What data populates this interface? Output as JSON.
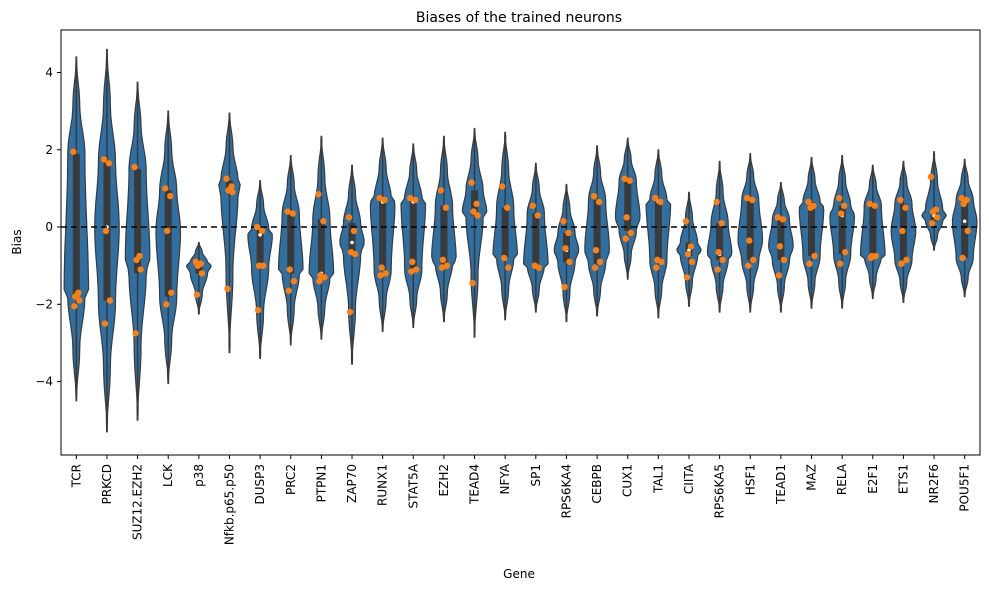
{
  "chart_data": {
    "type": "violin",
    "title": "Biases of the trained neurons",
    "xlabel": "Gene",
    "ylabel": "Bias",
    "ylim": [
      -5.9,
      5.1
    ],
    "yticks": [
      -4,
      -2,
      0,
      2,
      4
    ],
    "reference_line": 0,
    "colors": {
      "violin": "#2f6fa1",
      "points": "#ff7f0e",
      "line": "#000000"
    },
    "categories": [
      "TCR",
      "PRKCD",
      "SUZ12.EZH2",
      "LCK",
      "p38",
      "Nfkb.p65.p50",
      "DUSP3",
      "PRC2",
      "PTPN1",
      "ZAP70",
      "RUNX1",
      "STAT5A",
      "EZH2",
      "TEAD4",
      "NFYA",
      "SP1",
      "RPS6KA4",
      "CEBPB",
      "CUX1",
      "TAL1",
      "CIITA",
      "RPS6KA5",
      "HSF1",
      "TEAD1",
      "MAZ",
      "RELA",
      "E2F1",
      "ETS1",
      "NR2F6",
      "POU5F1"
    ],
    "violins": [
      {
        "min": -4.5,
        "max": 4.4,
        "q1": -1.8,
        "median": -1.75,
        "q3": 1.9
      },
      {
        "min": -5.3,
        "max": 4.6,
        "q1": -1.9,
        "median": 0.0,
        "q3": 1.7
      },
      {
        "min": -5.0,
        "max": 3.75,
        "q1": -1.2,
        "median": -0.8,
        "q3": 1.5
      },
      {
        "min": -4.05,
        "max": 3.0,
        "q1": -1.8,
        "median": -0.1,
        "q3": 0.95
      },
      {
        "min": -2.25,
        "max": -0.4,
        "q1": -1.2,
        "median": -1.0,
        "q3": -0.9
      },
      {
        "min": -3.25,
        "max": 2.95,
        "q1": 0.9,
        "median": 1.0,
        "q3": 1.2
      },
      {
        "min": -3.4,
        "max": 1.2,
        "q1": -1.05,
        "median": -0.2,
        "q3": -0.05
      },
      {
        "min": -3.05,
        "max": 1.85,
        "q1": -1.2,
        "median": -1.1,
        "q3": 0.35
      },
      {
        "min": -2.9,
        "max": 2.35,
        "q1": -1.3,
        "median": -1.2,
        "q3": 0.2
      },
      {
        "min": -3.55,
        "max": 1.6,
        "q1": -0.7,
        "median": -0.4,
        "q3": 0.1
      },
      {
        "min": -2.7,
        "max": 2.3,
        "q1": -1.1,
        "median": 0.65,
        "q3": 0.75
      },
      {
        "min": -2.6,
        "max": 2.15,
        "q1": -1.1,
        "median": 0.65,
        "q3": 0.75
      },
      {
        "min": -2.45,
        "max": 2.35,
        "q1": -0.95,
        "median": -0.85,
        "q3": 0.55
      },
      {
        "min": -2.85,
        "max": 2.55,
        "q1": 0.3,
        "median": 0.4,
        "q3": 0.95
      },
      {
        "min": -2.4,
        "max": 2.45,
        "q1": -0.8,
        "median": -0.8,
        "q3": 0.5
      },
      {
        "min": -2.2,
        "max": 1.65,
        "q1": -1.0,
        "median": -1.0,
        "q3": 0.35
      },
      {
        "min": -2.45,
        "max": 1.1,
        "q1": -0.9,
        "median": -0.6,
        "q3": -0.15
      },
      {
        "min": -2.3,
        "max": 2.1,
        "q1": -0.95,
        "median": -0.6,
        "q3": 0.7
      },
      {
        "min": -1.35,
        "max": 2.3,
        "q1": -0.1,
        "median": 0.25,
        "q3": 1.2
      },
      {
        "min": -2.35,
        "max": 2.0,
        "q1": -0.85,
        "median": 0.65,
        "q3": 0.7
      },
      {
        "min": -2.05,
        "max": 0.9,
        "q1": -0.75,
        "median": -0.6,
        "q3": -0.4
      },
      {
        "min": -2.2,
        "max": 1.7,
        "q1": -0.85,
        "median": -0.7,
        "q3": 0.1
      },
      {
        "min": -2.2,
        "max": 1.9,
        "q1": -0.85,
        "median": -0.35,
        "q3": 0.7
      },
      {
        "min": -2.2,
        "max": 1.15,
        "q1": -0.85,
        "median": -0.5,
        "q3": 0.2
      },
      {
        "min": -2.1,
        "max": 1.8,
        "q1": -0.75,
        "median": 0.5,
        "q3": 0.65
      },
      {
        "min": -2.1,
        "max": 1.85,
        "q1": -0.7,
        "median": 0.3,
        "q3": 0.55
      },
      {
        "min": -1.85,
        "max": 1.6,
        "q1": -0.75,
        "median": -0.75,
        "q3": 0.55
      },
      {
        "min": -1.95,
        "max": 1.7,
        "q1": -0.85,
        "median": -0.1,
        "q3": 0.6
      },
      {
        "min": -0.6,
        "max": 1.95,
        "q1": 0.15,
        "median": 0.3,
        "q3": 0.45
      },
      {
        "min": -1.8,
        "max": 1.75,
        "q1": -0.8,
        "median": 0.15,
        "q3": 0.7
      }
    ],
    "points": [
      [
        1.95,
        -1.7,
        -1.8,
        -1.9,
        -2.05,
        -1.75
      ],
      [
        1.75,
        1.65,
        -0.1,
        -1.9,
        -2.5
      ],
      [
        1.55,
        -0.75,
        -0.85,
        -1.1,
        -2.75
      ],
      [
        1.0,
        0.8,
        -0.1,
        -1.7,
        -2.0
      ],
      [
        -0.9,
        -0.95,
        -1.0,
        -1.2,
        -1.75
      ],
      [
        1.25,
        1.05,
        0.95,
        0.9,
        -1.6
      ],
      [
        -0.0,
        -0.1,
        -1.0,
        -1.0,
        -2.15
      ],
      [
        0.4,
        0.35,
        -1.1,
        -1.4,
        -1.65
      ],
      [
        0.85,
        0.15,
        -1.25,
        -1.3,
        -1.4
      ],
      [
        0.25,
        -0.1,
        -0.65,
        -0.7,
        -2.2
      ],
      [
        0.75,
        0.7,
        -1.05,
        -1.2,
        -1.25
      ],
      [
        0.75,
        0.7,
        -0.9,
        -1.1,
        -1.15
      ],
      [
        0.95,
        0.5,
        -0.85,
        -1.0,
        -1.05
      ],
      [
        1.15,
        0.6,
        0.4,
        0.3,
        -1.45
      ],
      [
        1.05,
        0.5,
        -0.8,
        -1.05
      ],
      [
        0.55,
        0.3,
        -1.0,
        -1.05
      ],
      [
        0.15,
        -0.15,
        -0.55,
        -0.9,
        -1.55
      ],
      [
        0.8,
        0.65,
        -0.6,
        -0.9,
        -1.05
      ],
      [
        1.25,
        1.2,
        0.25,
        -0.15,
        -0.3
      ],
      [
        0.75,
        0.65,
        -0.85,
        -0.9,
        -1.05
      ],
      [
        0.15,
        -0.5,
        -0.7,
        -0.9,
        -1.3
      ],
      [
        0.65,
        0.1,
        -0.65,
        -0.85,
        -1.1
      ],
      [
        0.75,
        0.7,
        -0.35,
        -0.85,
        -1.0
      ],
      [
        0.25,
        0.2,
        -0.5,
        -0.85,
        -1.25
      ],
      [
        0.65,
        0.55,
        0.5,
        -0.75,
        -0.95
      ],
      [
        0.75,
        0.55,
        0.35,
        -0.65,
        -0.95
      ],
      [
        0.6,
        0.55,
        -0.75,
        -0.75,
        -0.8
      ],
      [
        0.7,
        0.5,
        -0.1,
        -0.85,
        -0.95
      ],
      [
        1.3,
        0.45,
        0.4,
        0.25,
        0.1
      ],
      [
        0.75,
        0.7,
        0.6,
        -0.1,
        -0.8
      ]
    ]
  }
}
